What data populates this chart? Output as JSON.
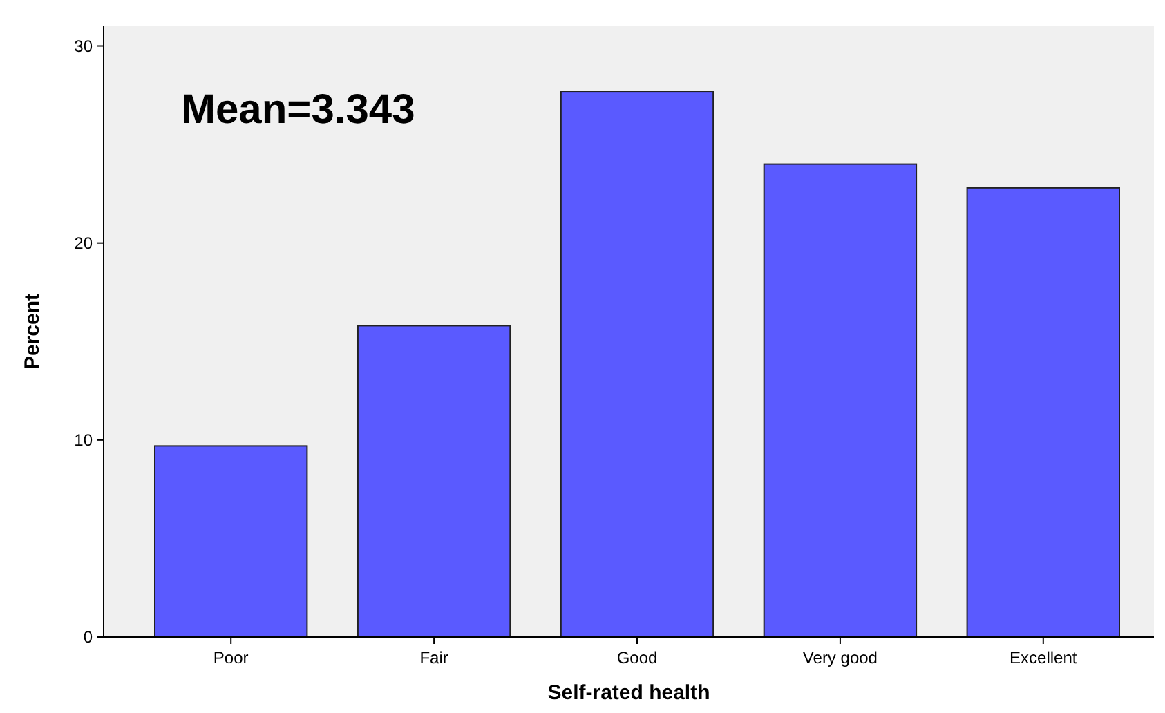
{
  "chart_data": {
    "type": "bar",
    "xlabel": "Self-rated health",
    "ylabel": "Percent",
    "categories": [
      "Poor",
      "Fair",
      "Good",
      "Very good",
      "Excellent"
    ],
    "values": [
      9.7,
      15.8,
      27.7,
      24.0,
      22.8
    ],
    "color": "#5a5aff",
    "ylim": [
      0,
      31
    ],
    "yticks": [
      0,
      10,
      20,
      30
    ],
    "grid": false,
    "annotations": [
      "Mean=3.343"
    ]
  }
}
